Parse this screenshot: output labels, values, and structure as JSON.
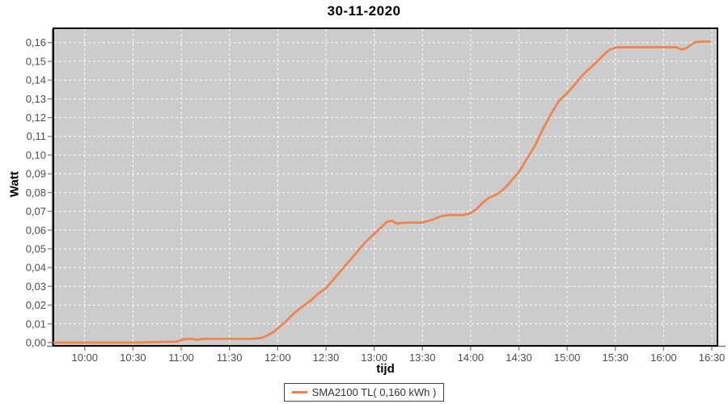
{
  "title": "30-11-2020",
  "axes": {
    "y_label": "Watt",
    "x_label": "tijd"
  },
  "legend": {
    "label": "SMA2100 TL( 0,160 kWh )"
  },
  "colors": {
    "series": "#F0824A",
    "plot_background": "#CCCCCC",
    "grid": "#FFFFFF",
    "plot_border": "#0a0a0a",
    "axis_line": "#808080",
    "tick_text": "#4d4d4d",
    "page_background": "#FFFFFF"
  },
  "chart_data": {
    "type": "line",
    "title": "30-11-2020",
    "xlabel": "tijd",
    "ylabel": "Watt",
    "grid": "white dashed, on",
    "legend_position": "bottom-center",
    "x_domain": [
      "09:41",
      "16:33"
    ],
    "y_domain": [
      -0.0013,
      0.1672
    ],
    "x_ticks": [
      "10:00",
      "10:30",
      "11:00",
      "11:30",
      "12:00",
      "12:30",
      "13:00",
      "13:30",
      "14:00",
      "14:30",
      "15:00",
      "15:30",
      "16:00",
      "16:30"
    ],
    "y_tick_values": [
      0.0,
      0.01,
      0.02,
      0.03,
      0.04,
      0.05,
      0.06,
      0.07,
      0.08,
      0.09,
      0.1,
      0.11,
      0.12,
      0.13,
      0.14,
      0.15,
      0.16
    ],
    "y_tick_labels": [
      "0,00",
      "0,01",
      "0,02",
      "0,03",
      "0,04",
      "0,05",
      "0,06",
      "0,07",
      "0,08",
      "0,09",
      "0,10",
      "0,11",
      "0,12",
      "0,13",
      "0,14",
      "0,15",
      "0,16"
    ],
    "series": [
      {
        "name": "SMA2100 TL( 0,160 kWh )",
        "color": "#F0824A",
        "total_kwh_label": "0,160 kWh",
        "points": [
          [
            "09:41",
            0.0
          ],
          [
            "10:00",
            0.0
          ],
          [
            "10:30",
            0.0
          ],
          [
            "10:57",
            0.0005
          ],
          [
            "11:02",
            0.0018
          ],
          [
            "11:06",
            0.002
          ],
          [
            "11:10",
            0.0015
          ],
          [
            "11:14",
            0.002
          ],
          [
            "11:30",
            0.002
          ],
          [
            "11:45",
            0.002
          ],
          [
            "11:50",
            0.0025
          ],
          [
            "11:54",
            0.004
          ],
          [
            "11:58",
            0.006
          ],
          [
            "12:02",
            0.009
          ],
          [
            "12:06",
            0.012
          ],
          [
            "12:10",
            0.0155
          ],
          [
            "12:15",
            0.019
          ],
          [
            "12:20",
            0.022
          ],
          [
            "12:25",
            0.026
          ],
          [
            "12:30",
            0.029
          ],
          [
            "12:35",
            0.034
          ],
          [
            "12:40",
            0.039
          ],
          [
            "12:45",
            0.044
          ],
          [
            "12:50",
            0.049
          ],
          [
            "12:55",
            0.054
          ],
          [
            "13:00",
            0.058
          ],
          [
            "13:05",
            0.062
          ],
          [
            "13:08",
            0.0645
          ],
          [
            "13:11",
            0.065
          ],
          [
            "13:14",
            0.0635
          ],
          [
            "13:20",
            0.064
          ],
          [
            "13:30",
            0.064
          ],
          [
            "13:36",
            0.0655
          ],
          [
            "13:42",
            0.0675
          ],
          [
            "13:46",
            0.068
          ],
          [
            "13:55",
            0.068
          ],
          [
            "14:00",
            0.069
          ],
          [
            "14:04",
            0.0715
          ],
          [
            "14:08",
            0.075
          ],
          [
            "14:11",
            0.077
          ],
          [
            "14:15",
            0.0785
          ],
          [
            "14:18",
            0.08
          ],
          [
            "14:22",
            0.083
          ],
          [
            "14:26",
            0.087
          ],
          [
            "14:30",
            0.091
          ],
          [
            "14:35",
            0.098
          ],
          [
            "14:40",
            0.105
          ],
          [
            "14:45",
            0.114
          ],
          [
            "14:50",
            0.122
          ],
          [
            "14:55",
            0.129
          ],
          [
            "15:00",
            0.133
          ],
          [
            "15:05",
            0.138
          ],
          [
            "15:10",
            0.143
          ],
          [
            "15:15",
            0.147
          ],
          [
            "15:20",
            0.151
          ],
          [
            "15:24",
            0.1545
          ],
          [
            "15:27",
            0.1565
          ],
          [
            "15:31",
            0.1575
          ],
          [
            "15:45",
            0.1575
          ],
          [
            "16:00",
            0.1575
          ],
          [
            "16:08",
            0.1575
          ],
          [
            "16:11",
            0.1563
          ],
          [
            "16:14",
            0.157
          ],
          [
            "16:17",
            0.1588
          ],
          [
            "16:20",
            0.1603
          ],
          [
            "16:24",
            0.1605
          ],
          [
            "16:29",
            0.1605
          ]
        ]
      }
    ]
  }
}
